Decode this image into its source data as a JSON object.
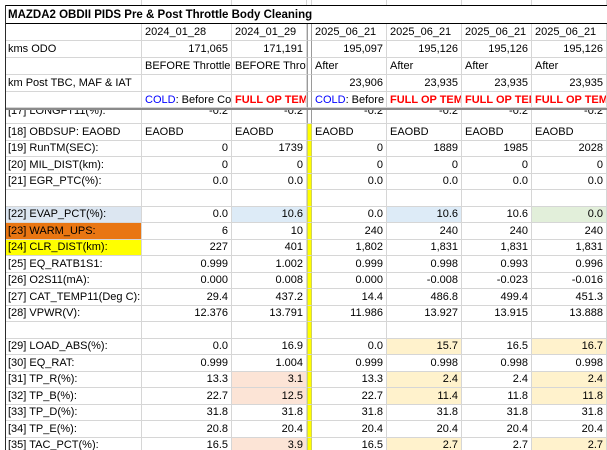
{
  "sheet": {
    "title": "MAZDA2 OBDII PIDS Pre & Post Throttle Body Cleaning",
    "column_headers": [
      "2024_01_28",
      "2024_01_29",
      "2025_06_21",
      "2025_06_21",
      "2025_06_21",
      "2025_06_21"
    ],
    "header_rows": {
      "odo": {
        "label": "kms  ODO",
        "values": [
          "171,065",
          "171,191",
          "195,097",
          "195,126",
          "195,126",
          "195,126"
        ]
      },
      "phase": {
        "label": "",
        "values": [
          "BEFORE Throttle Bo",
          "BEFORE Throttl",
          "After",
          "After",
          "After",
          "After"
        ]
      },
      "post_tbc": {
        "label": "km Post TBC, MAF & IAT",
        "values": [
          "",
          "",
          "23,906",
          "23,935",
          "23,935",
          "23,935"
        ]
      },
      "temp_state": {
        "label": "",
        "values": [
          {
            "prefix": "COLD",
            "rest": ": Before Cold S"
          },
          {
            "text": "FULL OP TEMP I"
          },
          {
            "prefix": "COLD",
            "rest": ": Before Co"
          },
          {
            "text": "FULL OP TEMP I"
          },
          {
            "text": "FULL OP TEMP I"
          },
          {
            "text": "FULL OP TEMP I"
          }
        ]
      }
    },
    "partial_scrolled_row": {
      "label": "[17] LONGFT11(%):",
      "values": [
        "-0.2",
        "-0.2",
        "-0.2",
        "-0.2",
        "-0.2",
        "-0.2"
      ]
    },
    "rows": [
      {
        "label": "[18] OBDSUP: EAOBD",
        "align": "left",
        "values": [
          "EAOBD",
          "EAOBD",
          "EAOBD",
          "EAOBD",
          "EAOBD",
          "EAOBD"
        ]
      },
      {
        "label": "[19] RunTM(SEC):",
        "values": [
          "0",
          "1739",
          "0",
          "1889",
          "1985",
          "2028"
        ]
      },
      {
        "label": "[20] MIL_DIST(km):",
        "values": [
          "0",
          "0",
          "0",
          "0",
          "0",
          "0"
        ]
      },
      {
        "label": "[21] EGR_PTC(%):",
        "values": [
          "0.0",
          "0.0",
          "0.0",
          "0.0",
          "0.0",
          "0.0"
        ]
      },
      {
        "spacer": true
      },
      {
        "label": "[22] EVAP_PCT(%):",
        "label_bg": "blue",
        "values": [
          "0.0",
          "10.6",
          "0.0",
          "10.6",
          "10.6",
          "0.0"
        ],
        "bg": [
          null,
          "blue",
          null,
          "blue",
          null,
          "green"
        ]
      },
      {
        "label": "[23] WARM_UPS:",
        "label_bg": "orange",
        "values": [
          "6",
          "10",
          "240",
          "240",
          "240",
          "240"
        ]
      },
      {
        "label": "[24] CLR_DIST(km):",
        "label_bg": "yellow",
        "values": [
          "227",
          "401",
          "1,802",
          "1,831",
          "1,831",
          "1,831"
        ]
      },
      {
        "label": "[25] EQ_RATB1S1:",
        "values": [
          "0.999",
          "1.002",
          "0.999",
          "0.998",
          "0.993",
          "0.996"
        ]
      },
      {
        "label": "[26] O2S11(mA):",
        "values": [
          "0.000",
          "0.008",
          "0.000",
          "-0.008",
          "-0.023",
          "-0.016"
        ]
      },
      {
        "label": "[27] CAT_TEMP11(Deg C):",
        "values": [
          "29.4",
          "437.2",
          "14.4",
          "486.8",
          "499.4",
          "451.3"
        ]
      },
      {
        "label": "[28] VPWR(V):",
        "values": [
          "12.376",
          "13.791",
          "11.986",
          "13.927",
          "13.915",
          "13.888"
        ]
      },
      {
        "spacer": true
      },
      {
        "label": "[29] LOAD_ABS(%):",
        "values": [
          "0.0",
          "16.9",
          "0.0",
          "15.7",
          "16.5",
          "16.7"
        ],
        "bg": [
          null,
          null,
          null,
          "lyellow",
          null,
          "lyellow"
        ]
      },
      {
        "label": "[30] EQ_RAT:",
        "values": [
          "0.999",
          "1.004",
          "0.999",
          "0.998",
          "0.998",
          "0.998"
        ]
      },
      {
        "label": "[31] TP_R(%):",
        "values": [
          "13.3",
          "3.1",
          "13.3",
          "2.4",
          "2.4",
          "2.4"
        ],
        "bg": [
          null,
          "pink",
          null,
          "lyellow",
          null,
          "lyellow"
        ]
      },
      {
        "label": "[32] TP_B(%):",
        "values": [
          "22.7",
          "12.5",
          "22.7",
          "11.4",
          "11.8",
          "11.8"
        ],
        "bg": [
          null,
          "pink",
          null,
          "lyellow",
          null,
          "lyellow"
        ]
      },
      {
        "label": "[33] TP_D(%):",
        "values": [
          "31.8",
          "31.8",
          "31.8",
          "31.8",
          "31.8",
          "31.8"
        ]
      },
      {
        "label": "[34] TP_E(%):",
        "values": [
          "20.8",
          "20.4",
          "20.4",
          "20.4",
          "20.4",
          "20.4"
        ]
      },
      {
        "label": "[35] TAC_PCT(%):",
        "values": [
          "16.5",
          "3.9",
          "16.5",
          "2.7",
          "2.7",
          "2.7"
        ],
        "bg": [
          null,
          "pink",
          null,
          "lyellow",
          null,
          "lyellow"
        ]
      }
    ],
    "colors": {
      "orange": "#E97612",
      "yellow": "#FFFF00",
      "blue": "#DCE6F1",
      "cell_blue": "#DDEBF7",
      "green": "#E2EFDA",
      "pink": "#FCE4D6",
      "lyellow": "#FFF2CC",
      "cold_text": "#0000FF",
      "hot_text": "#FF0000",
      "freeze_stripe": "#FFFF00"
    }
  }
}
